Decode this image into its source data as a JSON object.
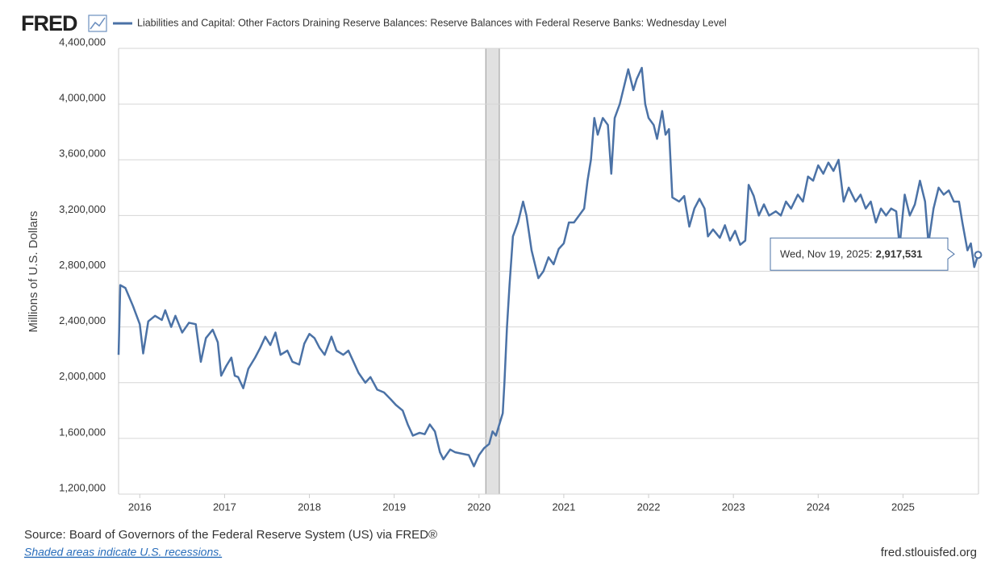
{
  "chart_data": {
    "type": "line",
    "logo": "FRED",
    "y_label": "Millions of U.S. Dollars",
    "source": "Source: Board of Governors of the Federal Reserve System (US) via FRED®",
    "note": "Shaded areas indicate U.S. recessions.",
    "site": "fred.stlouisfed.org",
    "grid": true,
    "xlim": [
      2015.75,
      2025.89
    ],
    "xticks": [
      2016,
      2017,
      2018,
      2019,
      2020,
      2021,
      2022,
      2023,
      2024,
      2025
    ],
    "ylim": [
      1200000,
      4400000
    ],
    "yticks": [
      {
        "value": 1200000,
        "label": "1,200,000"
      },
      {
        "value": 1600000,
        "label": "1,600,000"
      },
      {
        "value": 2000000,
        "label": "2,000,000"
      },
      {
        "value": 2400000,
        "label": "2,400,000"
      },
      {
        "value": 2800000,
        "label": "2,800,000"
      },
      {
        "value": 3200000,
        "label": "3,200,000"
      },
      {
        "value": 3600000,
        "label": "3,600,000"
      },
      {
        "value": 4000000,
        "label": "4,000,000"
      },
      {
        "value": 4400000,
        "label": "4,400,000"
      }
    ],
    "recessions": [
      {
        "start": 2020.08,
        "end": 2020.24
      }
    ],
    "tooltip": {
      "date": "Wed, Nov 19, 2025:",
      "value": 2917531,
      "label": "2,917,531"
    },
    "x": [
      2015.75,
      2015.77,
      2015.83,
      2015.92,
      2016.0,
      2016.04,
      2016.1,
      2016.18,
      2016.26,
      2016.3,
      2016.37,
      2016.42,
      2016.5,
      2016.58,
      2016.66,
      2016.72,
      2016.78,
      2016.86,
      2016.92,
      2016.96,
      2017.02,
      2017.08,
      2017.12,
      2017.16,
      2017.22,
      2017.28,
      2017.36,
      2017.42,
      2017.48,
      2017.54,
      2017.6,
      2017.66,
      2017.74,
      2017.8,
      2017.88,
      2017.94,
      2018.0,
      2018.06,
      2018.12,
      2018.18,
      2018.26,
      2018.32,
      2018.4,
      2018.46,
      2018.52,
      2018.58,
      2018.66,
      2018.72,
      2018.8,
      2018.88,
      2018.96,
      2019.02,
      2019.1,
      2019.16,
      2019.22,
      2019.3,
      2019.36,
      2019.42,
      2019.48,
      2019.54,
      2019.58,
      2019.66,
      2019.72,
      2019.8,
      2019.88,
      2019.94,
      2020.0,
      2020.06,
      2020.12,
      2020.16,
      2020.2,
      2020.24,
      2020.28,
      2020.3,
      2020.33,
      2020.36,
      2020.4,
      2020.46,
      2020.52,
      2020.56,
      2020.62,
      2020.7,
      2020.76,
      2020.82,
      2020.88,
      2020.94,
      2021.0,
      2021.06,
      2021.12,
      2021.18,
      2021.24,
      2021.28,
      2021.32,
      2021.36,
      2021.4,
      2021.46,
      2021.52,
      2021.56,
      2021.6,
      2021.66,
      2021.72,
      2021.76,
      2021.82,
      2021.86,
      2021.92,
      2021.96,
      2022.0,
      2022.06,
      2022.1,
      2022.16,
      2022.2,
      2022.24,
      2022.28,
      2022.36,
      2022.42,
      2022.48,
      2022.54,
      2022.6,
      2022.66,
      2022.7,
      2022.76,
      2022.84,
      2022.9,
      2022.96,
      2023.02,
      2023.08,
      2023.14,
      2023.18,
      2023.24,
      2023.3,
      2023.36,
      2023.42,
      2023.5,
      2023.56,
      2023.62,
      2023.68,
      2023.76,
      2023.82,
      2023.88,
      2023.94,
      2024.0,
      2024.06,
      2024.12,
      2024.18,
      2024.24,
      2024.3,
      2024.36,
      2024.44,
      2024.5,
      2024.56,
      2024.62,
      2024.68,
      2024.74,
      2024.8,
      2024.86,
      2024.92,
      2024.96,
      2025.02,
      2025.08,
      2025.14,
      2025.2,
      2025.26,
      2025.3,
      2025.36,
      2025.42,
      2025.48,
      2025.54,
      2025.6,
      2025.66,
      2025.7,
      2025.76,
      2025.8,
      2025.84,
      2025.885
    ],
    "series": [
      {
        "name": "Liabilities and Capital: Other Factors Draining Reserve Balances: Reserve Balances with Federal Reserve Banks: Wednesday Level",
        "color": "#4b72a6",
        "values": [
          2200000,
          2700000,
          2680000,
          2550000,
          2420000,
          2210000,
          2440000,
          2480000,
          2450000,
          2520000,
          2400000,
          2480000,
          2360000,
          2430000,
          2420000,
          2150000,
          2320000,
          2380000,
          2290000,
          2050000,
          2120000,
          2180000,
          2050000,
          2040000,
          1960000,
          2100000,
          2180000,
          2250000,
          2330000,
          2270000,
          2360000,
          2200000,
          2230000,
          2150000,
          2130000,
          2280000,
          2350000,
          2320000,
          2250000,
          2200000,
          2330000,
          2230000,
          2200000,
          2230000,
          2150000,
          2070000,
          2000000,
          2040000,
          1950000,
          1930000,
          1880000,
          1840000,
          1800000,
          1700000,
          1620000,
          1640000,
          1630000,
          1700000,
          1650000,
          1500000,
          1450000,
          1520000,
          1500000,
          1490000,
          1480000,
          1400000,
          1480000,
          1530000,
          1560000,
          1650000,
          1620000,
          1700000,
          1780000,
          2000000,
          2400000,
          2700000,
          3050000,
          3150000,
          3300000,
          3200000,
          2950000,
          2750000,
          2800000,
          2900000,
          2850000,
          2960000,
          3000000,
          3150000,
          3150000,
          3200000,
          3250000,
          3450000,
          3600000,
          3900000,
          3780000,
          3900000,
          3850000,
          3500000,
          3900000,
          4000000,
          4150000,
          4250000,
          4100000,
          4180000,
          4260000,
          4000000,
          3900000,
          3850000,
          3750000,
          3950000,
          3780000,
          3820000,
          3330000,
          3300000,
          3340000,
          3120000,
          3250000,
          3320000,
          3250000,
          3050000,
          3100000,
          3040000,
          3130000,
          3020000,
          3090000,
          2990000,
          3020000,
          3420000,
          3340000,
          3200000,
          3280000,
          3200000,
          3230000,
          3200000,
          3300000,
          3250000,
          3350000,
          3300000,
          3480000,
          3450000,
          3560000,
          3500000,
          3580000,
          3520000,
          3600000,
          3300000,
          3400000,
          3300000,
          3350000,
          3250000,
          3300000,
          3150000,
          3250000,
          3200000,
          3250000,
          3230000,
          2980000,
          3350000,
          3200000,
          3280000,
          3450000,
          3300000,
          3000000,
          3250000,
          3400000,
          3350000,
          3380000,
          3300000,
          3300000,
          3150000,
          2950000,
          3000000,
          2830000,
          2917531
        ]
      }
    ]
  }
}
